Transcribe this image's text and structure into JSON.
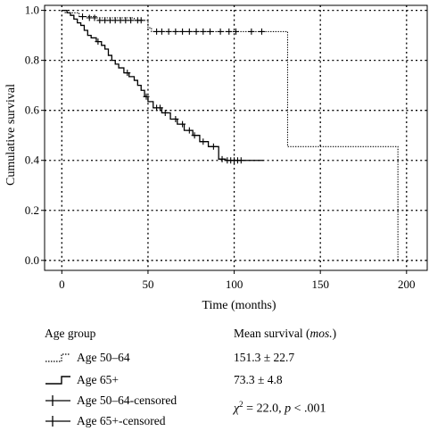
{
  "chart_data": {
    "type": "line",
    "subtype": "kaplan-meier",
    "title": "",
    "xlabel": "Time (months)",
    "ylabel": "Cumulative survival",
    "xlim": [
      -10,
      212
    ],
    "ylim": [
      -0.04,
      1.02
    ],
    "xticks": [
      0,
      50,
      100,
      150,
      200
    ],
    "yticks": [
      0.0,
      0.2,
      0.4,
      0.6,
      0.8,
      1.0
    ],
    "ytick_labels": [
      "0.0",
      "0.2",
      "0.4",
      "0.6",
      "0.8",
      "1.0"
    ],
    "grid": true,
    "series": [
      {
        "name": "Age 50–64",
        "style": "dotted",
        "color": "#000000",
        "steps": [
          [
            0,
            1.0
          ],
          [
            2,
            0.99
          ],
          [
            10,
            0.975
          ],
          [
            20,
            0.97
          ],
          [
            42,
            0.96
          ],
          [
            50,
            0.93
          ],
          [
            52,
            0.915
          ],
          [
            131,
            0.455
          ],
          [
            195,
            0.0
          ]
        ],
        "end_x": 195,
        "censored": [
          [
            12,
            0.975
          ],
          [
            16,
            0.97
          ],
          [
            19,
            0.97
          ],
          [
            22,
            0.96
          ],
          [
            25,
            0.96
          ],
          [
            28,
            0.96
          ],
          [
            31,
            0.96
          ],
          [
            34,
            0.96
          ],
          [
            37,
            0.96
          ],
          [
            40,
            0.96
          ],
          [
            44,
            0.96
          ],
          [
            46,
            0.96
          ],
          [
            55,
            0.915
          ],
          [
            58,
            0.915
          ],
          [
            62,
            0.915
          ],
          [
            66,
            0.915
          ],
          [
            70,
            0.915
          ],
          [
            74,
            0.915
          ],
          [
            78,
            0.915
          ],
          [
            82,
            0.915
          ],
          [
            86,
            0.915
          ],
          [
            92,
            0.915
          ],
          [
            97,
            0.915
          ],
          [
            101,
            0.915
          ],
          [
            110,
            0.915
          ],
          [
            116,
            0.915
          ]
        ]
      },
      {
        "name": "Age 65+",
        "style": "solid",
        "color": "#000000",
        "steps": [
          [
            0,
            1.0
          ],
          [
            3,
            0.99
          ],
          [
            5,
            0.98
          ],
          [
            7,
            0.965
          ],
          [
            9,
            0.95
          ],
          [
            11,
            0.94
          ],
          [
            13,
            0.92
          ],
          [
            15,
            0.9
          ],
          [
            17,
            0.89
          ],
          [
            20,
            0.875
          ],
          [
            23,
            0.86
          ],
          [
            25,
            0.845
          ],
          [
            27,
            0.82
          ],
          [
            29,
            0.8
          ],
          [
            31,
            0.785
          ],
          [
            33,
            0.77
          ],
          [
            36,
            0.75
          ],
          [
            39,
            0.735
          ],
          [
            42,
            0.72
          ],
          [
            44,
            0.7
          ],
          [
            46,
            0.68
          ],
          [
            48,
            0.655
          ],
          [
            50,
            0.635
          ],
          [
            53,
            0.61
          ],
          [
            58,
            0.59
          ],
          [
            63,
            0.565
          ],
          [
            67,
            0.545
          ],
          [
            71,
            0.52
          ],
          [
            76,
            0.5
          ],
          [
            80,
            0.475
          ],
          [
            85,
            0.455
          ],
          [
            91,
            0.405
          ],
          [
            95,
            0.4
          ]
        ],
        "end_x": 117,
        "censored": [
          [
            21,
            0.875
          ],
          [
            38,
            0.75
          ],
          [
            49,
            0.655
          ],
          [
            55,
            0.61
          ],
          [
            57,
            0.61
          ],
          [
            60,
            0.59
          ],
          [
            66,
            0.565
          ],
          [
            70,
            0.545
          ],
          [
            74,
            0.52
          ],
          [
            77,
            0.5
          ],
          [
            82,
            0.475
          ],
          [
            88,
            0.455
          ],
          [
            93,
            0.405
          ],
          [
            96,
            0.4
          ],
          [
            98,
            0.4
          ],
          [
            100,
            0.4
          ],
          [
            102,
            0.4
          ],
          [
            104,
            0.4
          ]
        ]
      }
    ]
  },
  "legend": {
    "title": "Age group",
    "entries": [
      {
        "label": "Age 50–64",
        "icon": "dotted-step"
      },
      {
        "label": "Age 65+",
        "icon": "solid-step"
      },
      {
        "label": "Age 50–64-censored",
        "icon": "plus-mark"
      },
      {
        "label": "Age 65+-censored",
        "icon": "plus-mark"
      }
    ]
  },
  "mean_survival": {
    "header_prefix": "Mean survival (",
    "header_unit": "mos.",
    "header_suffix": ")",
    "values": [
      "151.3 ± 22.7",
      "73.3 ± 4.8"
    ],
    "chi_symbol": "χ",
    "chi_exp": "2",
    "chi_value": " = 22.0, ",
    "p_symbol": "p",
    "p_value": " < .001"
  }
}
